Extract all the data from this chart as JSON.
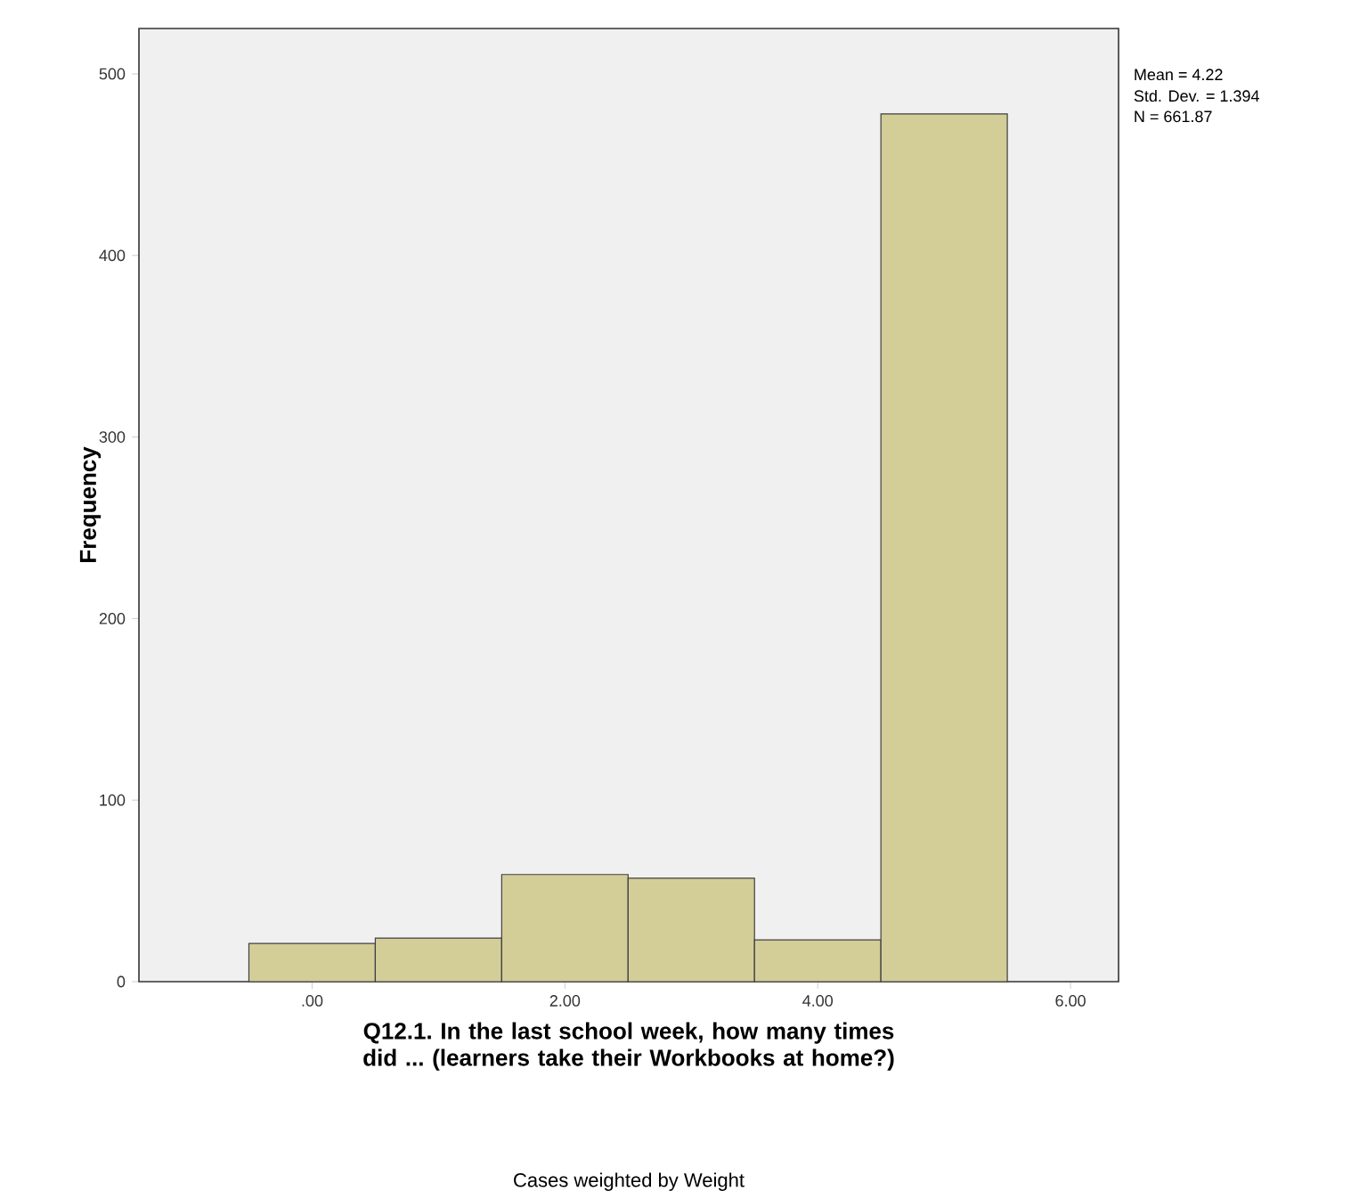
{
  "chart_data": {
    "type": "histogram",
    "xlabel": "Q12.1. In the last school week, how many times did ... (learners take their Workbooks at home?)",
    "ylabel": "Frequency",
    "bins": [
      -0.5,
      0.5,
      1.5,
      2.5,
      3.5,
      4.5,
      5.5
    ],
    "values": [
      21,
      24,
      59,
      57,
      23,
      478
    ],
    "color": "#d3cd98",
    "xlim": [
      -1.37,
      6.38
    ],
    "ylim": [
      0,
      525
    ],
    "xticks": [
      {
        "value": 0,
        "label": ".00"
      },
      {
        "value": 2,
        "label": "2.00"
      },
      {
        "value": 4,
        "label": "4.00"
      },
      {
        "value": 6,
        "label": "6.00"
      }
    ],
    "yticks": [
      0,
      100,
      200,
      300,
      400,
      500
    ],
    "annotations": [
      "Mean = 4.22",
      "Std. Dev. = 1.394",
      "N = 661.87",
      "Cases weighted by Weight"
    ]
  }
}
